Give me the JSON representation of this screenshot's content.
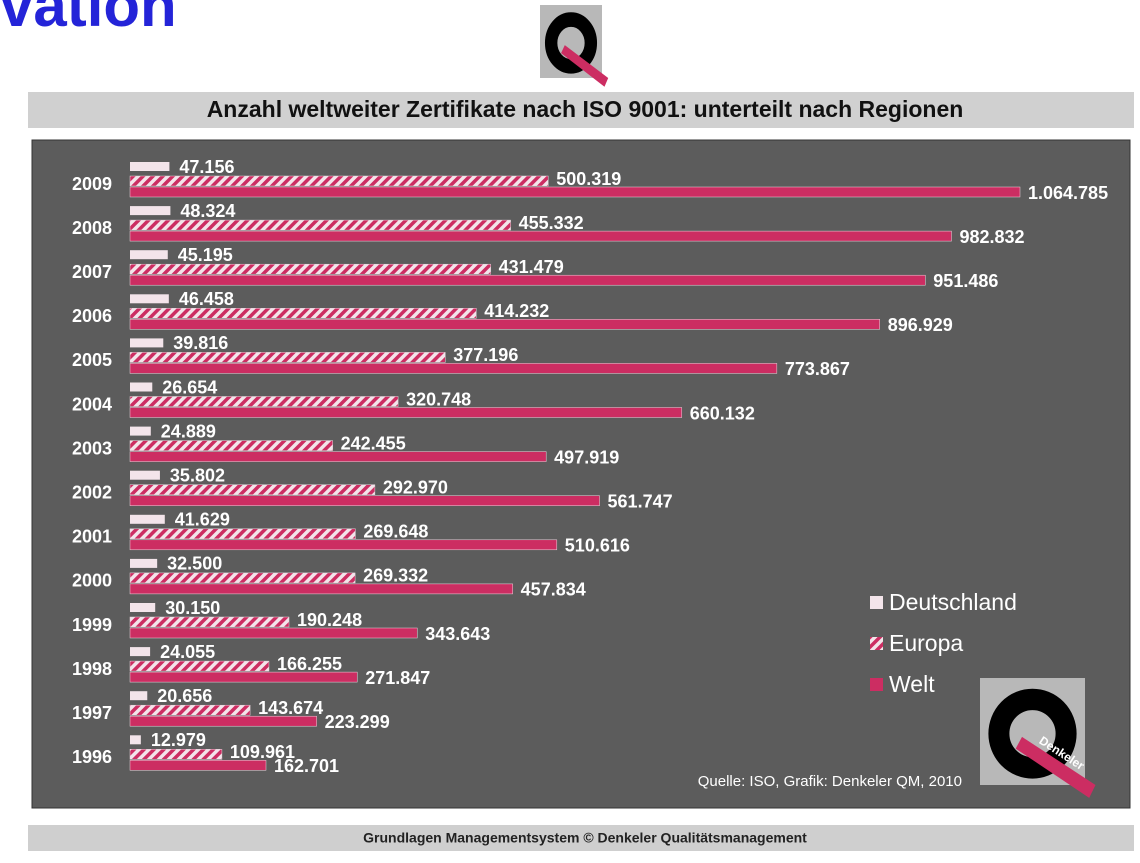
{
  "header_fragment": "vation",
  "logo_text": "Denkeler",
  "footer": "Grundlagen  Managementsystem © Denkeler  Qualitätsmanagement",
  "chart_data": {
    "type": "bar",
    "orientation": "horizontal",
    "title": "Anzahl weltweiter Zertifikate nach ISO 9001: unterteilt nach Regionen",
    "source": "Quelle: ISO, Grafik: Denkeler QM, 2010",
    "categories": [
      "2009",
      "2008",
      "2007",
      "2006",
      "2005",
      "2004",
      "2003",
      "2002",
      "2001",
      "2000",
      "1999",
      "1998",
      "1997",
      "1996"
    ],
    "series": [
      {
        "name": "Deutschland",
        "color": "#f3e4ea",
        "values": [
          47156,
          48324,
          45195,
          46458,
          39816,
          26654,
          24889,
          35802,
          41629,
          32500,
          30150,
          24055,
          20656,
          12979
        ],
        "value_labels": [
          "47.156",
          "48.324",
          "45.195",
          "46.458",
          "39.816",
          "26.654",
          "24.889",
          "35.802",
          "41.629",
          "32.500",
          "30.150",
          "24.055",
          "20.656",
          "12.979"
        ]
      },
      {
        "name": "Europa",
        "color": "#cc2d62",
        "pattern": "hatch",
        "values": [
          500319,
          455332,
          431479,
          414232,
          377196,
          320748,
          242455,
          292970,
          269648,
          269332,
          190248,
          166255,
          143674,
          109961
        ],
        "value_labels": [
          "500.319",
          "455.332",
          "431.479",
          "414.232",
          "377.196",
          "320.748",
          "242.455",
          "292.970",
          "269.648",
          "269.332",
          "190.248",
          "166.255",
          "143.674",
          "109.961"
        ]
      },
      {
        "name": "Welt",
        "color": "#cc2d62",
        "values": [
          1064785,
          982832,
          951486,
          896929,
          773867,
          660132,
          497919,
          561747,
          510616,
          457834,
          343643,
          271847,
          223299,
          162701
        ],
        "value_labels": [
          "1.064.785",
          "982.832",
          "951.486",
          "896.929",
          "773.867",
          "660.132",
          "497.919",
          "561.747",
          "510.616",
          "457.834",
          "343.643",
          "271.847",
          "223.299",
          "162.701"
        ]
      }
    ],
    "legend": "right"
  }
}
